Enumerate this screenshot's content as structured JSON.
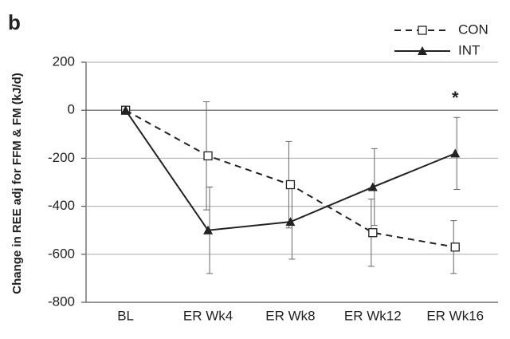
{
  "chart_data": {
    "type": "line",
    "panel_label": "b",
    "y_label": "Change in REE adj for FFM & FM (kJ/d)",
    "categories": [
      "BL",
      "ER Wk4",
      "ER Wk8",
      "ER Wk12",
      "ER Wk16"
    ],
    "series": [
      {
        "name": "CON",
        "color": "#222222",
        "dashed": true,
        "marker": "square-open",
        "values": [
          0,
          -190,
          -310,
          -510,
          -570
        ],
        "errors": [
          null,
          225,
          180,
          140,
          110
        ]
      },
      {
        "name": "INT",
        "color": "#222222",
        "dashed": false,
        "marker": "triangle-filled",
        "values": [
          0,
          -500,
          -465,
          -320,
          -180
        ],
        "errors": [
          null,
          180,
          155,
          160,
          150
        ]
      }
    ],
    "annotation": "*",
    "ylim": [
      -800,
      200
    ],
    "yticks": [
      -800,
      -600,
      -400,
      -200,
      0,
      200
    ],
    "grid": true,
    "legend": "top-right"
  }
}
